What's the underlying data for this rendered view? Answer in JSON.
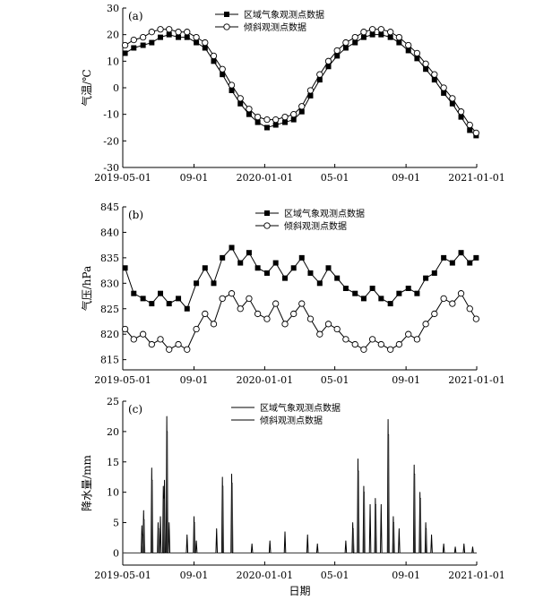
{
  "chart_data": [
    {
      "type": "line",
      "panel": "(a)",
      "ylabel": "气温/℃",
      "xlabel": "",
      "ylim": [
        -30,
        30
      ],
      "yticks": [
        -30,
        -20,
        -10,
        0,
        10,
        20,
        30
      ],
      "xlim": [
        "2019-05-01",
        "2021-01-01"
      ],
      "xticks": [
        "2019-05-01",
        "2019-09-01",
        "2020-01-01",
        "2020-05-01",
        "2020-09-01",
        "2021-01-01"
      ],
      "xticklabels": [
        "2019-05-01",
        "09-01",
        "2020-01-01",
        "05-01",
        "09-01",
        "2021-01-01"
      ],
      "legend_position": "top-center",
      "series": [
        {
          "name": "区域气象观测点数据",
          "marker": "filled-square",
          "x": [
            "2019-05-05",
            "2019-05-20",
            "2019-06-05",
            "2019-06-20",
            "2019-07-05",
            "2019-07-20",
            "2019-08-05",
            "2019-08-20",
            "2019-09-05",
            "2019-09-20",
            "2019-10-05",
            "2019-10-20",
            "2019-11-05",
            "2019-11-20",
            "2019-12-05",
            "2019-12-20",
            "2020-01-05",
            "2020-01-20",
            "2020-02-05",
            "2020-02-20",
            "2020-03-05",
            "2020-03-20",
            "2020-04-05",
            "2020-04-20",
            "2020-05-05",
            "2020-05-20",
            "2020-06-05",
            "2020-06-20",
            "2020-07-05",
            "2020-07-20",
            "2020-08-05",
            "2020-08-20",
            "2020-09-05",
            "2020-09-20",
            "2020-10-05",
            "2020-10-20",
            "2020-11-05",
            "2020-11-20",
            "2020-12-05",
            "2020-12-20",
            "2020-12-31"
          ],
          "y": [
            13,
            15,
            16,
            17,
            19,
            20,
            19,
            19,
            17,
            15,
            10,
            5,
            -1,
            -6,
            -10,
            -13,
            -15,
            -14,
            -13,
            -12,
            -9,
            -3,
            3,
            8,
            12,
            15,
            17,
            19,
            20,
            20,
            19,
            17,
            14,
            11,
            7,
            3,
            -2,
            -6,
            -11,
            -16,
            -18
          ]
        },
        {
          "name": "倾斜观测点数据",
          "marker": "open-circle",
          "x": [
            "2019-05-05",
            "2019-05-20",
            "2019-06-05",
            "2019-06-20",
            "2019-07-05",
            "2019-07-20",
            "2019-08-05",
            "2019-08-20",
            "2019-09-05",
            "2019-09-20",
            "2019-10-05",
            "2019-10-20",
            "2019-11-05",
            "2019-11-20",
            "2019-12-05",
            "2019-12-20",
            "2020-01-05",
            "2020-01-20",
            "2020-02-05",
            "2020-02-20",
            "2020-03-05",
            "2020-03-20",
            "2020-04-05",
            "2020-04-20",
            "2020-05-05",
            "2020-05-20",
            "2020-06-05",
            "2020-06-20",
            "2020-07-05",
            "2020-07-20",
            "2020-08-05",
            "2020-08-20",
            "2020-09-05",
            "2020-09-20",
            "2020-10-05",
            "2020-10-20",
            "2020-11-05",
            "2020-11-20",
            "2020-12-05",
            "2020-12-20",
            "2020-12-31"
          ],
          "y": [
            16,
            18,
            19,
            21,
            22,
            22,
            21,
            21,
            19,
            17,
            12,
            7,
            1,
            -4,
            -8,
            -11,
            -12,
            -12,
            -11,
            -10,
            -7,
            -1,
            5,
            10,
            14,
            17,
            19,
            21,
            22,
            22,
            21,
            19,
            16,
            13,
            9,
            5,
            0,
            -4,
            -9,
            -14,
            -17
          ]
        }
      ]
    },
    {
      "type": "line",
      "panel": "(b)",
      "ylabel": "气压/hPa",
      "xlabel": "",
      "ylim": [
        813,
        845
      ],
      "yticks": [
        815,
        820,
        825,
        830,
        835,
        840,
        845
      ],
      "xlim": [
        "2019-05-01",
        "2021-01-01"
      ],
      "xticks": [
        "2019-05-01",
        "2019-09-01",
        "2020-01-01",
        "2020-05-01",
        "2020-09-01",
        "2021-01-01"
      ],
      "xticklabels": [
        "2019-05-01",
        "09-01",
        "2020-01-01",
        "05-01",
        "09-01",
        "2021-01-01"
      ],
      "legend_position": "top-center",
      "series": [
        {
          "name": "区域气象观测点数据",
          "marker": "filled-square",
          "x": [
            "2019-05-05",
            "2019-05-20",
            "2019-06-05",
            "2019-06-20",
            "2019-07-05",
            "2019-07-20",
            "2019-08-05",
            "2019-08-20",
            "2019-09-05",
            "2019-09-20",
            "2019-10-05",
            "2019-10-20",
            "2019-11-05",
            "2019-11-20",
            "2019-12-05",
            "2019-12-20",
            "2020-01-05",
            "2020-01-20",
            "2020-02-05",
            "2020-02-20",
            "2020-03-05",
            "2020-03-20",
            "2020-04-05",
            "2020-04-20",
            "2020-05-05",
            "2020-05-20",
            "2020-06-05",
            "2020-06-20",
            "2020-07-05",
            "2020-07-20",
            "2020-08-05",
            "2020-08-20",
            "2020-09-05",
            "2020-09-20",
            "2020-10-05",
            "2020-10-20",
            "2020-11-05",
            "2020-11-20",
            "2020-12-05",
            "2020-12-20",
            "2020-12-31"
          ],
          "y": [
            833,
            828,
            827,
            826,
            828,
            826,
            827,
            825,
            830,
            833,
            830,
            835,
            837,
            834,
            836,
            833,
            832,
            834,
            831,
            833,
            835,
            832,
            830,
            833,
            831,
            829,
            828,
            827,
            829,
            827,
            826,
            828,
            829,
            828,
            831,
            832,
            835,
            834,
            836,
            834,
            835
          ]
        },
        {
          "name": "倾斜观测点数据",
          "marker": "open-circle",
          "x": [
            "2019-05-05",
            "2019-05-20",
            "2019-06-05",
            "2019-06-20",
            "2019-07-05",
            "2019-07-20",
            "2019-08-05",
            "2019-08-20",
            "2019-09-05",
            "2019-09-20",
            "2019-10-05",
            "2019-10-20",
            "2019-11-05",
            "2019-11-20",
            "2019-12-05",
            "2019-12-20",
            "2020-01-05",
            "2020-01-20",
            "2020-02-05",
            "2020-02-20",
            "2020-03-05",
            "2020-03-20",
            "2020-04-05",
            "2020-04-20",
            "2020-05-05",
            "2020-05-20",
            "2020-06-05",
            "2020-06-20",
            "2020-07-05",
            "2020-07-20",
            "2020-08-05",
            "2020-08-20",
            "2020-09-05",
            "2020-09-20",
            "2020-10-05",
            "2020-10-20",
            "2020-11-05",
            "2020-11-20",
            "2020-12-05",
            "2020-12-20",
            "2020-12-31"
          ],
          "y": [
            821,
            819,
            820,
            818,
            819,
            817,
            818,
            817,
            821,
            824,
            822,
            827,
            828,
            825,
            827,
            824,
            823,
            826,
            822,
            824,
            826,
            823,
            820,
            822,
            821,
            819,
            818,
            817,
            819,
            818,
            817,
            818,
            820,
            819,
            822,
            824,
            827,
            826,
            828,
            825,
            823
          ]
        }
      ]
    },
    {
      "type": "line",
      "panel": "(c)",
      "ylabel": "降水量/mm",
      "xlabel": "日期",
      "ylim": [
        -2,
        25
      ],
      "yticks": [
        0,
        5,
        10,
        15,
        20,
        25
      ],
      "xlim": [
        "2019-05-01",
        "2021-01-01"
      ],
      "xticks": [
        "2019-05-01",
        "2019-09-01",
        "2020-01-01",
        "2020-05-01",
        "2020-09-01",
        "2021-01-01"
      ],
      "xticklabels": [
        "2019-05-01",
        "09-01",
        "2020-01-01",
        "05-01",
        "09-01",
        "2021-01-01"
      ],
      "legend_position": "top-center",
      "series": [
        {
          "name": "区域气象观测点数据",
          "spikes": [
            [
              "2019-06-03",
              4.5
            ],
            [
              "2019-06-06",
              7
            ],
            [
              "2019-06-20",
              14
            ],
            [
              "2019-07-01",
              5
            ],
            [
              "2019-07-05",
              6
            ],
            [
              "2019-07-10",
              11
            ],
            [
              "2019-07-12",
              12
            ],
            [
              "2019-07-16",
              22.5
            ],
            [
              "2019-07-20",
              5
            ],
            [
              "2019-08-20",
              3
            ],
            [
              "2019-09-01",
              6
            ],
            [
              "2019-09-05",
              2
            ],
            [
              "2019-10-10",
              4
            ],
            [
              "2019-10-20",
              12.5
            ],
            [
              "2019-11-05",
              13
            ],
            [
              "2019-12-10",
              1.5
            ],
            [
              "2020-01-10",
              2
            ],
            [
              "2020-02-05",
              3.5
            ],
            [
              "2020-03-15",
              3
            ],
            [
              "2020-04-01",
              1.5
            ],
            [
              "2020-05-20",
              2
            ],
            [
              "2020-06-01",
              5
            ],
            [
              "2020-06-10",
              15.5
            ],
            [
              "2020-06-20",
              11
            ],
            [
              "2020-07-01",
              8
            ],
            [
              "2020-07-10",
              9
            ],
            [
              "2020-07-20",
              8
            ],
            [
              "2020-08-01",
              22
            ],
            [
              "2020-08-10",
              6
            ],
            [
              "2020-08-20",
              4
            ],
            [
              "2020-09-15",
              14.5
            ],
            [
              "2020-09-25",
              10
            ],
            [
              "2020-10-05",
              5
            ],
            [
              "2020-10-15",
              3
            ],
            [
              "2020-11-05",
              1.5
            ],
            [
              "2020-11-25",
              1
            ],
            [
              "2020-12-10",
              1.5
            ],
            [
              "2020-12-25",
              1
            ]
          ]
        },
        {
          "name": "倾斜观测点数据",
          "spikes": [
            [
              "2019-06-04",
              3
            ],
            [
              "2019-06-07",
              5.5
            ],
            [
              "2019-06-21",
              12
            ],
            [
              "2019-07-02",
              4
            ],
            [
              "2019-07-11",
              9
            ],
            [
              "2019-07-17",
              20
            ],
            [
              "2019-09-02",
              5
            ],
            [
              "2019-10-21",
              11
            ],
            [
              "2019-11-06",
              11.5
            ],
            [
              "2020-06-02",
              4
            ],
            [
              "2020-06-11",
              13.5
            ],
            [
              "2020-06-21",
              10
            ],
            [
              "2020-07-11",
              8
            ],
            [
              "2020-08-02",
              19.5
            ],
            [
              "2020-08-11",
              5
            ],
            [
              "2020-09-16",
              13
            ],
            [
              "2020-09-26",
              9
            ],
            [
              "2020-10-06",
              4
            ]
          ]
        }
      ]
    }
  ]
}
